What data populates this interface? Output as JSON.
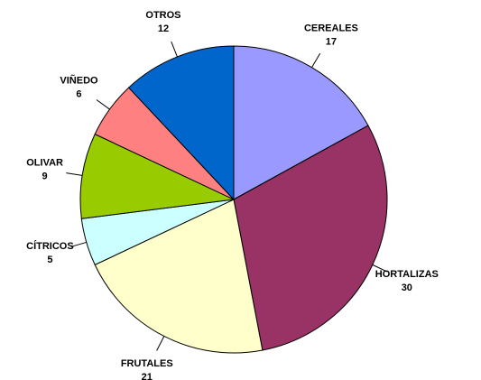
{
  "chart_data": {
    "type": "pie",
    "categories": [
      "CEREALES",
      "HORTALIZAS",
      "FRUTALES",
      "CÍTRICOS",
      "OLIVAR",
      "VIÑEDO",
      "OTROS"
    ],
    "values": [
      17,
      30,
      21,
      5,
      9,
      6,
      12
    ],
    "colors": [
      "#9999ff",
      "#993366",
      "#ffffcc",
      "#ccffff",
      "#99cc00",
      "#ff8080",
      "#0066cc"
    ]
  }
}
